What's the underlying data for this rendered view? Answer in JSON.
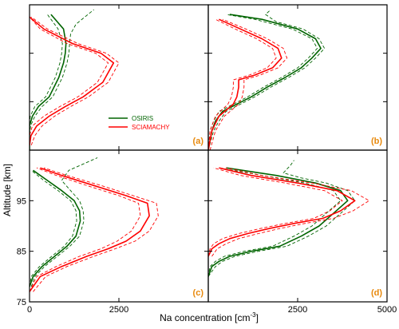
{
  "figure": {
    "ylabel": "Altitude [km]",
    "xlabel": "Na concentration [cm",
    "xlabel_sup": "-3",
    "xlabel_tail": "]"
  },
  "colors": {
    "osiris": "#006400",
    "sciamachy": "#ff0000",
    "panel_label": "#e8890c"
  },
  "legend": {
    "entries": [
      "OSIRIS",
      "SCIAMACHY"
    ],
    "panel": "a"
  },
  "chart_data": [
    {
      "type": "line",
      "panel": "(a)",
      "xlim": [
        0,
        5000
      ],
      "ylim": [
        75,
        105
      ],
      "yticks": [],
      "xticks": [],
      "series": [
        {
          "name": "OSIRIS",
          "style": "solid",
          "x": [
            0,
            0,
            0,
            80,
            250,
            550,
            820,
            950,
            1000,
            1020,
            950,
            600
          ],
          "y": [
            75,
            78,
            80,
            82,
            84,
            86,
            90,
            93,
            95,
            97,
            100,
            103
          ]
        },
        {
          "name": "OSIRIS",
          "style": "dashed",
          "x": [
            0,
            0,
            30,
            150,
            350,
            650,
            920,
            1050,
            1100,
            1120,
            1150,
            1300,
            1800
          ],
          "y": [
            75,
            78,
            80,
            82,
            84,
            86,
            90,
            93,
            95,
            97,
            99,
            101,
            104
          ]
        },
        {
          "name": "OSIRIS",
          "style": "dashed",
          "x": [
            0,
            0,
            0,
            20,
            150,
            450,
            720,
            850,
            900,
            920,
            800,
            500
          ],
          "y": [
            75,
            78,
            80,
            82,
            84,
            86,
            90,
            93,
            95,
            97,
            100,
            103
          ]
        },
        {
          "name": "SCIAMACHY",
          "style": "solid",
          "x": [
            0,
            40,
            200,
            550,
            1000,
            1500,
            2050,
            2350,
            2000,
            1200,
            400,
            0
          ],
          "y": [
            76,
            78,
            80,
            82,
            84,
            86,
            89,
            93,
            95,
            97,
            100,
            102.5
          ]
        },
        {
          "name": "SCIAMACHY",
          "style": "dashed",
          "x": [
            50,
            150,
            350,
            700,
            1150,
            1650,
            2200,
            2500,
            2150,
            1350,
            500,
            50
          ],
          "y": [
            76,
            78,
            80,
            82,
            84,
            86,
            89,
            93,
            95,
            97,
            100,
            102.5
          ]
        },
        {
          "name": "SCIAMACHY",
          "style": "dashed",
          "x": [
            0,
            0,
            80,
            400,
            850,
            1350,
            1900,
            2200,
            1850,
            1050,
            300,
            0
          ],
          "y": [
            76,
            78,
            80,
            82,
            84,
            86,
            89,
            93,
            95,
            97,
            100,
            102.5
          ]
        }
      ]
    },
    {
      "type": "line",
      "panel": "(b)",
      "xlim": [
        0,
        5000
      ],
      "ylim": [
        75,
        105
      ],
      "yticks": [],
      "xticks": [],
      "series": [
        {
          "name": "OSIRIS",
          "style": "solid",
          "x": [
            0,
            100,
            200,
            400,
            800,
            1200,
            1650,
            2150,
            2600,
            2900,
            3150,
            3000,
            2500,
            1500,
            600
          ],
          "y": [
            75,
            79,
            81,
            83,
            84.5,
            86,
            88,
            90,
            92,
            94,
            96,
            98,
            100,
            102,
            103
          ]
        },
        {
          "name": "OSIRIS",
          "style": "dashed",
          "x": [
            0,
            150,
            300,
            500,
            900,
            1300,
            1750,
            2250,
            2700,
            3000,
            3250,
            3100,
            2650,
            1900,
            1600,
            1750
          ],
          "y": [
            75,
            79,
            81,
            83,
            84.5,
            86,
            88,
            90,
            92,
            94,
            96,
            98,
            100,
            101.5,
            103,
            104
          ]
        },
        {
          "name": "OSIRIS",
          "style": "dashed",
          "x": [
            0,
            50,
            150,
            300,
            700,
            1100,
            1550,
            2050,
            2500,
            2800,
            3050,
            2900,
            2350,
            1300,
            500
          ],
          "y": [
            75,
            79,
            81,
            83,
            84.5,
            86,
            88,
            90,
            92,
            94,
            96,
            98,
            100,
            102,
            103
          ]
        },
        {
          "name": "SCIAMACHY",
          "style": "solid",
          "x": [
            0,
            100,
            300,
            700,
            800,
            850,
            850,
            1300,
            1800,
            2050,
            1950,
            1500,
            900,
            300
          ],
          "y": [
            75,
            79,
            82,
            84.5,
            86,
            88,
            89.5,
            90.5,
            92,
            94,
            96,
            98,
            100,
            102
          ]
        },
        {
          "name": "SCIAMACHY",
          "style": "dashed",
          "x": [
            50,
            200,
            450,
            850,
            950,
            1000,
            1000,
            1450,
            1950,
            2200,
            2100,
            1650,
            1050,
            400
          ],
          "y": [
            75,
            79,
            82,
            84.5,
            86,
            88,
            89.5,
            90.5,
            92,
            94,
            96,
            98,
            100,
            102
          ]
        },
        {
          "name": "SCIAMACHY",
          "style": "dashed",
          "x": [
            0,
            50,
            200,
            550,
            650,
            700,
            700,
            1150,
            1650,
            1900,
            1800,
            1350,
            750,
            200
          ],
          "y": [
            75,
            79,
            82,
            84.5,
            86,
            88,
            89.5,
            90.5,
            92,
            94,
            96,
            98,
            100,
            102
          ]
        }
      ]
    },
    {
      "type": "line",
      "panel": "(c)",
      "xlim": [
        0,
        5000
      ],
      "ylim": [
        75,
        105
      ],
      "yticks": [
        "75",
        "85",
        "95"
      ],
      "xticks": [
        "0",
        "2500"
      ],
      "series": [
        {
          "name": "OSIRIS",
          "style": "solid",
          "x": [
            0,
            100,
            350,
            700,
            1050,
            1300,
            1420,
            1400,
            1250,
            900,
            500,
            100
          ],
          "y": [
            78,
            80,
            82,
            84,
            86,
            88,
            91,
            93,
            95,
            97,
            99,
            101
          ]
        },
        {
          "name": "OSIRIS",
          "style": "dashed",
          "x": [
            50,
            150,
            420,
            780,
            1130,
            1400,
            1520,
            1500,
            1400,
            1150,
            900,
            1100,
            1900
          ],
          "y": [
            78,
            80,
            82,
            84,
            86,
            88,
            91,
            93,
            95,
            97,
            99,
            101,
            103.5
          ]
        },
        {
          "name": "OSIRIS",
          "style": "dashed",
          "x": [
            0,
            50,
            280,
            620,
            970,
            1200,
            1320,
            1300,
            1150,
            800,
            400,
            50
          ],
          "y": [
            78,
            80,
            82,
            84,
            86,
            88,
            91,
            93,
            95,
            97,
            99,
            101
          ]
        },
        {
          "name": "SCIAMACHY",
          "style": "solid",
          "x": [
            0,
            300,
            900,
            1600,
            2200,
            2700,
            3100,
            3350,
            3300,
            2700,
            1800,
            900,
            300
          ],
          "y": [
            77,
            80,
            82,
            84,
            85.5,
            87,
            89,
            92,
            94.5,
            96,
            98,
            100,
            101.5
          ]
        },
        {
          "name": "SCIAMACHY",
          "style": "dashed",
          "x": [
            100,
            450,
            1050,
            1800,
            2400,
            2950,
            3350,
            3600,
            3550,
            2900,
            2000,
            1050,
            400
          ],
          "y": [
            77,
            80,
            82,
            84,
            85.5,
            87,
            89,
            92,
            94.5,
            96,
            98,
            100,
            101.5
          ]
        },
        {
          "name": "SCIAMACHY",
          "style": "dashed",
          "x": [
            0,
            200,
            750,
            1400,
            2000,
            2450,
            2850,
            3100,
            3050,
            2500,
            1600,
            750,
            200
          ],
          "y": [
            77,
            80,
            82,
            84,
            85.5,
            87,
            89,
            92,
            94.5,
            96,
            98,
            100,
            101.5
          ]
        }
      ]
    },
    {
      "type": "line",
      "panel": "(d)",
      "xlim": [
        0,
        5000
      ],
      "ylim": [
        75,
        105
      ],
      "yticks": [],
      "xticks": [
        "2500",
        "5000"
      ],
      "series": [
        {
          "name": "OSIRIS",
          "style": "solid",
          "x": [
            0,
            100,
            300,
            600,
            1200,
            2000,
            2600,
            3100,
            3500,
            3900,
            3700,
            3000,
            1900,
            500
          ],
          "y": [
            80,
            82,
            83,
            84,
            85,
            86,
            88,
            90,
            92.5,
            95,
            97,
            98.5,
            100,
            101.5
          ]
        },
        {
          "name": "OSIRIS",
          "style": "dashed",
          "x": [
            0,
            200,
            400,
            750,
            1400,
            2200,
            2800,
            3300,
            3700,
            4100,
            3900,
            3300,
            2600,
            2100,
            2300,
            2400
          ],
          "y": [
            80,
            82,
            83,
            84,
            85,
            86,
            88,
            90,
            92.5,
            95,
            97,
            98.5,
            99.5,
            100.5,
            102,
            103
          ]
        },
        {
          "name": "OSIRIS",
          "style": "dashed",
          "x": [
            0,
            50,
            200,
            450,
            1000,
            1800,
            2400,
            2900,
            3300,
            3700,
            3500,
            2700,
            1500,
            300
          ],
          "y": [
            80,
            82,
            83,
            84,
            85,
            86,
            88,
            90,
            92.5,
            95,
            97,
            98.5,
            100,
            101.5
          ]
        },
        {
          "name": "SCIAMACHY",
          "style": "solid",
          "x": [
            0,
            100,
            300,
            600,
            1100,
            1700,
            2400,
            3200,
            3700,
            4100,
            3600,
            2500,
            1200,
            300
          ],
          "y": [
            84,
            85.5,
            86.5,
            87.5,
            88.5,
            89.5,
            90.5,
            91.5,
            93,
            95,
            97,
            98.5,
            100,
            101.5
          ]
        },
        {
          "name": "SCIAMACHY",
          "style": "dashed",
          "x": [
            100,
            250,
            500,
            850,
            1400,
            2000,
            2700,
            3500,
            4050,
            4500,
            4000,
            2900,
            1500,
            500
          ],
          "y": [
            84,
            85.5,
            86.5,
            87.5,
            88.5,
            89.5,
            90.5,
            91.5,
            93,
            95,
            97,
            98.5,
            100,
            101.5
          ]
        },
        {
          "name": "SCIAMACHY",
          "style": "dashed",
          "x": [
            0,
            50,
            150,
            400,
            850,
            1450,
            2150,
            2950,
            3400,
            3750,
            3250,
            2150,
            900,
            150
          ],
          "y": [
            84,
            85.5,
            86.5,
            87.5,
            88.5,
            89.5,
            90.5,
            91.5,
            93,
            95,
            97,
            98.5,
            100,
            101.5
          ]
        }
      ]
    }
  ]
}
